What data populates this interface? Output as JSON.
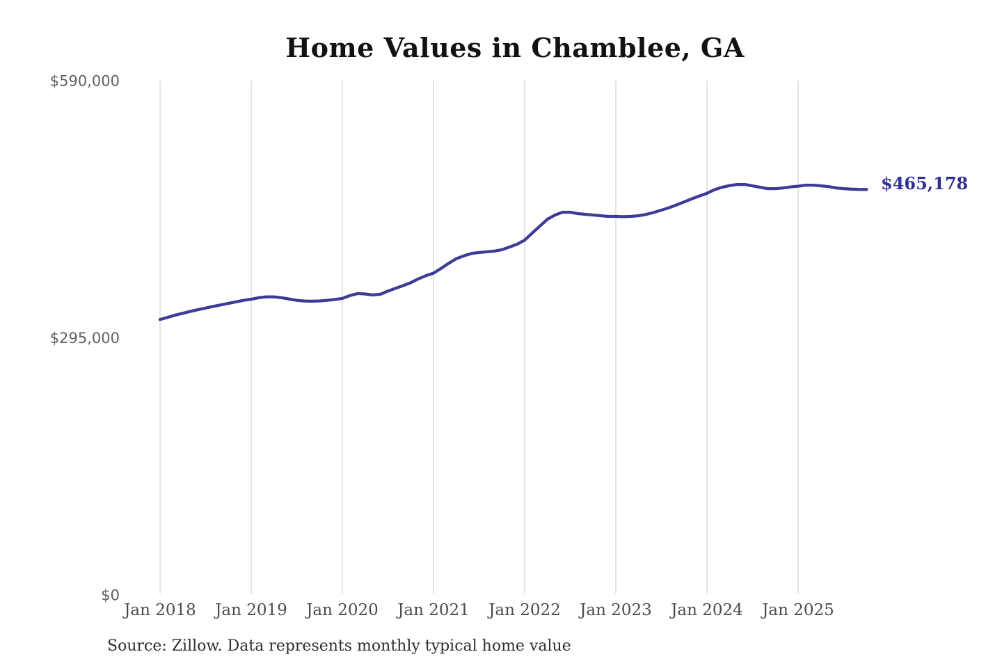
{
  "page": {
    "title": "Home Values in Chamblee, GA",
    "end_label": "$465,178",
    "source_note": "Source: Zillow. Data represents monthly typical home value"
  },
  "chart_data": {
    "type": "line",
    "title": "Home Values in Chamblee, GA",
    "xlabel": "",
    "ylabel": "",
    "grid": "vertical-only",
    "legend": "none",
    "ylim": [
      0,
      590000
    ],
    "y_ticks": [
      0,
      295000,
      590000
    ],
    "y_tick_labels": [
      "$0",
      "$295,000",
      "$590,000"
    ],
    "x_tick_labels": [
      "Jan 2018",
      "Jan 2019",
      "Jan 2020",
      "Jan 2021",
      "Jan 2022",
      "Jan 2023",
      "Jan 2024",
      "Jan 2025"
    ],
    "line_color": "#3c3c96",
    "end_label_color": "#2f2f96",
    "last_value": 465178,
    "last_value_label": "$465,178",
    "source": "Source: Zillow. Data represents monthly typical home value",
    "series": [
      {
        "name": "Typical home value",
        "start": "2018-01",
        "frequency": "monthly",
        "values": [
          316000,
          318500,
          321000,
          323200,
          325300,
          327300,
          329200,
          331000,
          332800,
          334500,
          336300,
          338000,
          339300,
          341000,
          342000,
          342000,
          341000,
          339500,
          338000,
          337200,
          337000,
          337300,
          338000,
          339000,
          340200,
          343500,
          345800,
          345300,
          344200,
          345000,
          348600,
          351800,
          354900,
          358300,
          362600,
          366300,
          369200,
          374700,
          380500,
          385800,
          389100,
          391800,
          392900,
          393700,
          394500,
          396100,
          399200,
          402400,
          407100,
          415200,
          423100,
          431100,
          435900,
          439100,
          439100,
          437500,
          436700,
          435900,
          435100,
          434300,
          434300,
          434000,
          434300,
          435100,
          436600,
          438900,
          441500,
          444300,
          447500,
          451000,
          454500,
          457700,
          460800,
          465000,
          467800,
          469800,
          471000,
          471000,
          469400,
          467800,
          466200,
          466200,
          467000,
          468200,
          469000,
          470200,
          470200,
          469400,
          468600,
          467000,
          466200,
          465600,
          465300,
          465178
        ]
      }
    ]
  }
}
